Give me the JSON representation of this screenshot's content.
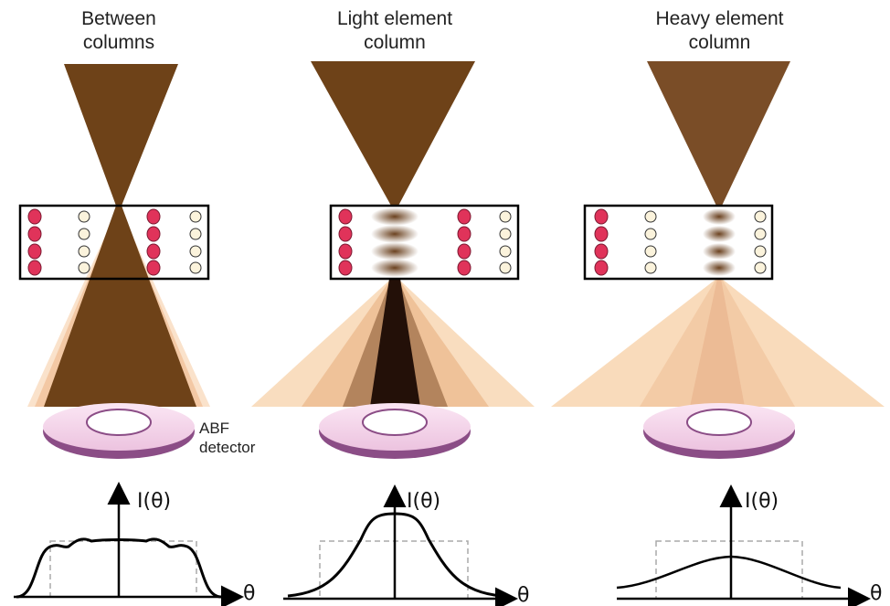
{
  "panels": [
    {
      "title": "Between columns",
      "y_axis_label": "I(θ)",
      "x_axis_label": "θ"
    },
    {
      "title": "Light element column",
      "y_axis_label": "I(θ)",
      "x_axis_label": "θ"
    },
    {
      "title": "Heavy element column",
      "y_axis_label": "I(θ)",
      "x_axis_label": "θ"
    }
  ],
  "detector_label": "ABF detector"
}
